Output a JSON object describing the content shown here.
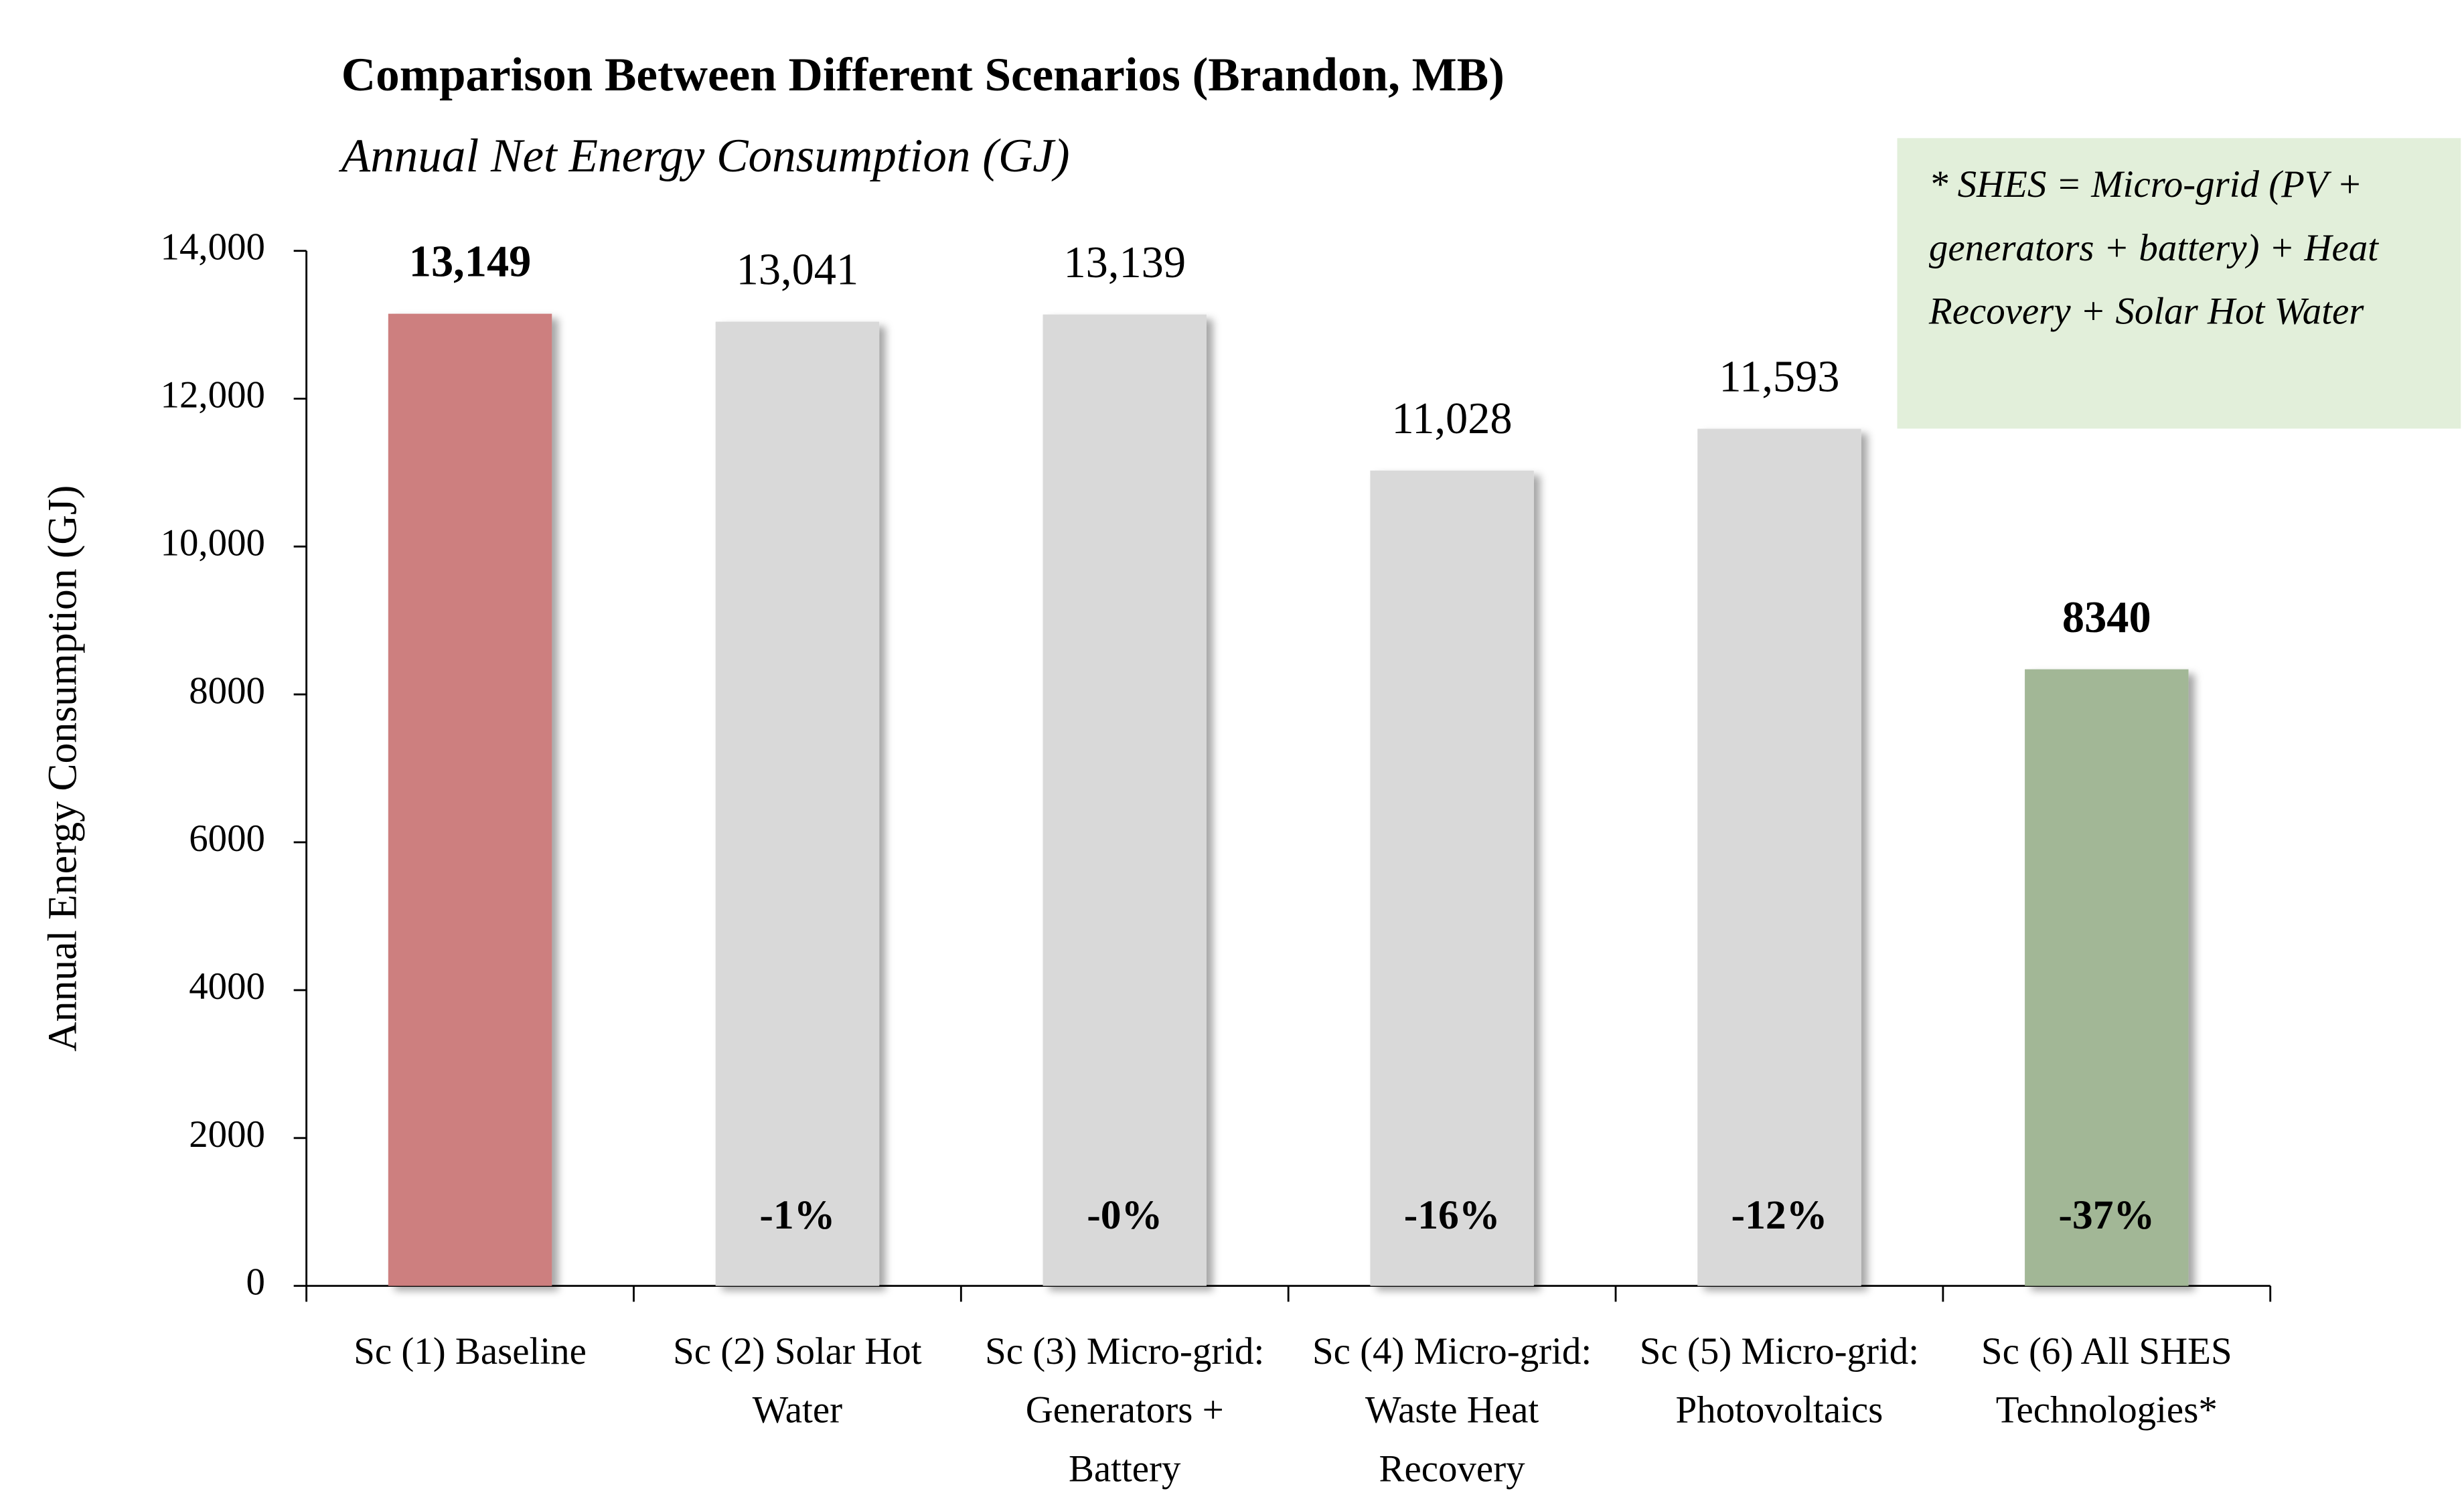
{
  "chart_data": {
    "type": "bar",
    "title": "Comparison Between Different Scenarios (Brandon, MB)",
    "subtitle": "Annual Net Energy Consumption (GJ)",
    "y_label": "Annual Energy Consumption (GJ)",
    "note": "* SHES = Micro-grid (PV + generators + battery) + Heat Recovery + Solar Hot Water",
    "categories": [
      "Sc (1) Baseline",
      "Sc (2) Solar Hot Water",
      "Sc (3) Micro-grid: Generators + Battery",
      "Sc (4) Micro-grid: Waste Heat Recovery",
      "Sc (5) Micro-grid: Photovoltaics",
      "Sc (6) All SHES Technologies*"
    ],
    "values": [
      13149,
      13041,
      13139,
      11028,
      11593,
      8340
    ],
    "value_labels": [
      "13,149",
      "13,041",
      "13,139",
      "11,028",
      "11,593",
      "8340"
    ],
    "change_labels": [
      null,
      "-1%",
      "-0%",
      "-16%",
      "-12%",
      "-37%"
    ],
    "colors": [
      "#cd7f7f",
      "#d9d9d9",
      "#d9d9d9",
      "#d9d9d9",
      "#d9d9d9",
      "#a2b796"
    ],
    "value_label_colors": [
      "#c00000",
      "#000000",
      "#000000",
      "#000000",
      "#000000",
      "#5a7d3a"
    ],
    "ylim": [
      0,
      14000
    ],
    "yticks": [
      0,
      2000,
      4000,
      6000,
      8000,
      {
        "value": 10000,
        "label": "10,000"
      },
      {
        "value": 12000,
        "label": "12,000"
      },
      {
        "value": 14000,
        "label": "14,000"
      }
    ],
    "grid": false
  }
}
